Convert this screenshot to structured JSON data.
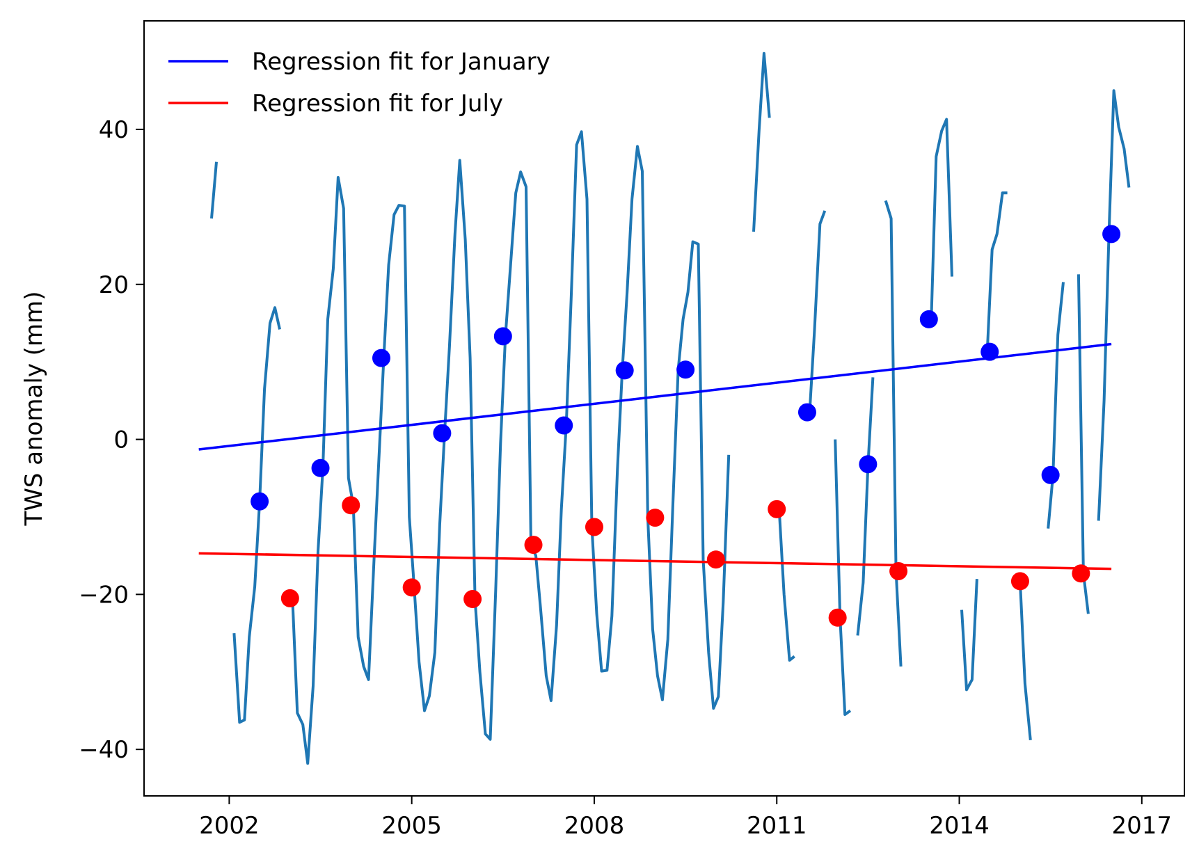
{
  "chart_data": {
    "type": "line",
    "xlabel": "",
    "ylabel": "TWS anomaly (mm)",
    "xlim": [
      2000.6,
      2017.7
    ],
    "ylim": [
      -46,
      54
    ],
    "x_ticks": [
      2002,
      2005,
      2008,
      2011,
      2014,
      2017
    ],
    "x_tick_labels": [
      "2002",
      "2005",
      "2008",
      "2011",
      "2014",
      "2017"
    ],
    "y_ticks": [
      -40,
      -20,
      0,
      20,
      40
    ],
    "y_tick_labels": [
      "−40",
      "−20",
      "0",
      "20",
      "40"
    ],
    "grid": false,
    "legend_position": "top-left",
    "colors": {
      "monthly": "#1f77b4",
      "january": "#0000ff",
      "july": "#ff0000"
    },
    "series": [
      {
        "kind": "monthly_line",
        "segments": [
          [
            [
              2001.71,
              28.5
            ],
            [
              2001.79,
              35.8
            ]
          ],
          [
            [
              2002.08,
              -25.0
            ],
            [
              2002.17,
              -36.5
            ],
            [
              2002.25,
              -36.2
            ],
            [
              2002.33,
              -25.5
            ],
            [
              2002.42,
              -19.0
            ],
            [
              2002.5,
              -8.0
            ],
            [
              2002.58,
              6.5
            ],
            [
              2002.67,
              15.0
            ],
            [
              2002.75,
              17.0
            ],
            [
              2002.83,
              14.2
            ]
          ],
          [
            [
              2003.04,
              -20.5
            ],
            [
              2003.12,
              -35.3
            ],
            [
              2003.21,
              -36.8
            ],
            [
              2003.29,
              -41.8
            ],
            [
              2003.38,
              -31.8
            ],
            [
              2003.46,
              -14.5
            ],
            [
              2003.54,
              -3.7
            ],
            [
              2003.62,
              15.5
            ],
            [
              2003.71,
              22.0
            ],
            [
              2003.79,
              33.8
            ],
            [
              2003.88,
              29.8
            ],
            [
              2003.96,
              -5.0
            ],
            [
              2004.04,
              -8.5
            ],
            [
              2004.12,
              -25.5
            ],
            [
              2004.21,
              -29.3
            ],
            [
              2004.29,
              -31.0
            ],
            [
              2004.38,
              -15.5
            ],
            [
              2004.46,
              -2.5
            ],
            [
              2004.54,
              10.5
            ],
            [
              2004.62,
              22.5
            ],
            [
              2004.71,
              29.0
            ],
            [
              2004.79,
              30.2
            ],
            [
              2004.88,
              30.1
            ],
            [
              2004.96,
              -10.0
            ],
            [
              2005.04,
              -19.1
            ],
            [
              2005.12,
              -28.7
            ],
            [
              2005.21,
              -35.0
            ],
            [
              2005.29,
              -33.1
            ],
            [
              2005.38,
              -27.5
            ],
            [
              2005.46,
              -11.0
            ],
            [
              2005.54,
              0.8
            ],
            [
              2005.62,
              12.0
            ],
            [
              2005.71,
              26.5
            ],
            [
              2005.79,
              36.0
            ],
            [
              2005.88,
              25.8
            ],
            [
              2005.96,
              10.5
            ],
            [
              2006.04,
              -20.6
            ],
            [
              2006.12,
              -30.0
            ],
            [
              2006.21,
              -38.0
            ],
            [
              2006.29,
              -38.7
            ],
            [
              2006.38,
              -19.5
            ],
            [
              2006.46,
              -0.5
            ],
            [
              2006.54,
              13.3
            ],
            [
              2006.62,
              22.0
            ],
            [
              2006.71,
              31.8
            ],
            [
              2006.79,
              34.5
            ],
            [
              2006.88,
              32.6
            ],
            [
              2006.96,
              -13.6
            ],
            [
              2007.04,
              -15.0
            ],
            [
              2007.12,
              -22.0
            ],
            [
              2007.21,
              -30.5
            ],
            [
              2007.29,
              -33.7
            ],
            [
              2007.38,
              -24.0
            ],
            [
              2007.46,
              -9.0
            ],
            [
              2007.54,
              1.8
            ],
            [
              2007.62,
              18.0
            ],
            [
              2007.71,
              38.0
            ],
            [
              2007.79,
              39.7
            ],
            [
              2007.88,
              31.0
            ],
            [
              2007.96,
              -11.3
            ],
            [
              2008.04,
              -22.5
            ],
            [
              2008.12,
              -29.9
            ],
            [
              2008.21,
              -29.8
            ],
            [
              2008.29,
              -22.8
            ],
            [
              2008.38,
              -4.0
            ],
            [
              2008.46,
              8.9
            ],
            [
              2008.54,
              19.0
            ],
            [
              2008.62,
              31.0
            ],
            [
              2008.71,
              37.8
            ],
            [
              2008.79,
              34.6
            ],
            [
              2008.88,
              -10.1
            ],
            [
              2008.96,
              -24.5
            ],
            [
              2009.04,
              -30.5
            ],
            [
              2009.12,
              -33.6
            ],
            [
              2009.21,
              -25.8
            ],
            [
              2009.29,
              -9.0
            ],
            [
              2009.38,
              9.0
            ],
            [
              2009.46,
              15.5
            ],
            [
              2009.54,
              19.0
            ],
            [
              2009.62,
              25.5
            ],
            [
              2009.71,
              25.2
            ],
            [
              2009.79,
              -15.5
            ],
            [
              2009.88,
              -27.5
            ],
            [
              2009.96,
              -34.7
            ],
            [
              2010.04,
              -33.2
            ],
            [
              2010.12,
              -21.0
            ],
            [
              2010.21,
              -2.0
            ]
          ],
          [
            [
              2010.62,
              26.8
            ],
            [
              2010.71,
              40.0
            ],
            [
              2010.79,
              49.8
            ],
            [
              2010.88,
              41.5
            ]
          ],
          [
            [
              2011.04,
              -9.0
            ],
            [
              2011.12,
              -20.0
            ],
            [
              2011.21,
              -28.5
            ],
            [
              2011.29,
              -28.0
            ]
          ],
          [
            [
              2011.54,
              3.5
            ],
            [
              2011.62,
              14.0
            ],
            [
              2011.71,
              27.8
            ],
            [
              2011.79,
              29.5
            ]
          ],
          [
            [
              2011.96,
              0.0
            ],
            [
              2012.04,
              -23.0
            ],
            [
              2012.12,
              -35.5
            ],
            [
              2012.21,
              -35.0
            ]
          ],
          [
            [
              2012.33,
              -25.3
            ],
            [
              2012.42,
              -18.5
            ],
            [
              2012.5,
              -3.2
            ],
            [
              2012.58,
              8.0
            ]
          ],
          [
            [
              2012.79,
              30.8
            ],
            [
              2012.88,
              28.5
            ],
            [
              2012.96,
              -17.0
            ],
            [
              2013.04,
              -29.3
            ]
          ],
          [
            [
              2013.54,
              15.5
            ],
            [
              2013.62,
              36.5
            ],
            [
              2013.71,
              39.8
            ],
            [
              2013.79,
              41.3
            ],
            [
              2013.88,
              21.0
            ]
          ],
          [
            [
              2014.04,
              -22.0
            ],
            [
              2014.12,
              -32.3
            ],
            [
              2014.21,
              -31.0
            ],
            [
              2014.29,
              -18.0
            ]
          ],
          [
            [
              2014.46,
              11.3
            ],
            [
              2014.54,
              24.5
            ],
            [
              2014.62,
              26.5
            ],
            [
              2014.71,
              31.8
            ],
            [
              2014.79,
              31.8
            ]
          ],
          [
            [
              2015.0,
              -18.3
            ],
            [
              2015.08,
              -31.5
            ],
            [
              2015.17,
              -38.8
            ]
          ],
          [
            [
              2015.46,
              -11.5
            ],
            [
              2015.54,
              -4.6
            ],
            [
              2015.62,
              13.5
            ],
            [
              2015.71,
              20.3
            ]
          ],
          [
            [
              2015.96,
              21.3
            ],
            [
              2016.04,
              -17.3
            ],
            [
              2016.12,
              -22.5
            ]
          ],
          [
            [
              2016.29,
              -10.5
            ],
            [
              2016.38,
              5.0
            ],
            [
              2016.46,
              26.5
            ],
            [
              2016.54,
              45.0
            ],
            [
              2016.62,
              40.3
            ],
            [
              2016.71,
              37.5
            ],
            [
              2016.79,
              32.5
            ]
          ]
        ]
      },
      {
        "name": "Regression fit for January",
        "kind": "regression",
        "x": [
          2001.5,
          2016.5
        ],
        "y": [
          -1.3,
          12.3
        ]
      },
      {
        "name": "Regression fit for July",
        "kind": "regression",
        "x": [
          2001.5,
          2016.5
        ],
        "y": [
          -14.7,
          -16.7
        ]
      },
      {
        "kind": "points_january",
        "x": [
          2002.5,
          2003.5,
          2004.5,
          2005.5,
          2006.5,
          2007.5,
          2008.5,
          2009.5,
          2011.5,
          2012.5,
          2013.5,
          2014.5,
          2015.5,
          2016.5
        ],
        "y": [
          -8.0,
          -3.7,
          10.5,
          0.8,
          13.3,
          1.8,
          8.9,
          9.0,
          3.5,
          -3.2,
          15.5,
          11.3,
          -4.6,
          26.5
        ]
      },
      {
        "kind": "points_july",
        "x": [
          2003.0,
          2004.0,
          2005.0,
          2006.0,
          2007.0,
          2008.0,
          2009.0,
          2010.0,
          2011.0,
          2012.0,
          2013.0,
          2015.0,
          2016.0
        ],
        "y": [
          -20.5,
          -8.5,
          -19.1,
          -20.6,
          -13.6,
          -11.3,
          -10.1,
          -15.5,
          -9.0,
          -23.0,
          -17.0,
          -18.3,
          -17.3
        ]
      }
    ]
  }
}
